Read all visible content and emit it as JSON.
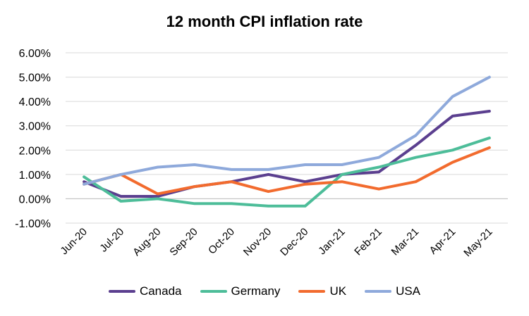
{
  "chart_data": {
    "type": "line",
    "title": "12 month CPI inflation rate",
    "xlabel": "",
    "ylabel": "",
    "categories": [
      "Jun-20",
      "Jul-20",
      "Aug-20",
      "Sep-20",
      "Oct-20",
      "Nov-20",
      "Dec-20",
      "Jan-21",
      "Feb-21",
      "Mar-21",
      "Apr-21",
      "May-21"
    ],
    "ylim": [
      -1.0,
      6.0
    ],
    "yticks": [
      -1.0,
      0.0,
      1.0,
      2.0,
      3.0,
      4.0,
      5.0,
      6.0
    ],
    "ytick_labels": [
      "-1.00%",
      "0.00%",
      "1.00%",
      "2.00%",
      "3.00%",
      "4.00%",
      "5.00%",
      "6.00%"
    ],
    "grid": true,
    "legend_position": "bottom",
    "series": [
      {
        "name": "Canada",
        "color": "#5b3f8f",
        "values": [
          0.7,
          0.1,
          0.1,
          0.5,
          0.7,
          1.0,
          0.7,
          1.0,
          1.1,
          2.2,
          3.4,
          3.6
        ]
      },
      {
        "name": "Germany",
        "color": "#4dbd99",
        "values": [
          0.9,
          -0.1,
          0.0,
          -0.2,
          -0.2,
          -0.3,
          -0.3,
          1.0,
          1.3,
          1.7,
          2.0,
          2.5
        ]
      },
      {
        "name": "UK",
        "color": "#f26b2e",
        "values": [
          0.6,
          1.0,
          0.2,
          0.5,
          0.7,
          0.3,
          0.6,
          0.7,
          0.4,
          0.7,
          1.5,
          2.1
        ]
      },
      {
        "name": "USA",
        "color": "#8ea9db",
        "values": [
          0.6,
          1.0,
          1.3,
          1.4,
          1.2,
          1.2,
          1.4,
          1.4,
          1.7,
          2.6,
          4.2,
          5.0
        ]
      }
    ]
  }
}
